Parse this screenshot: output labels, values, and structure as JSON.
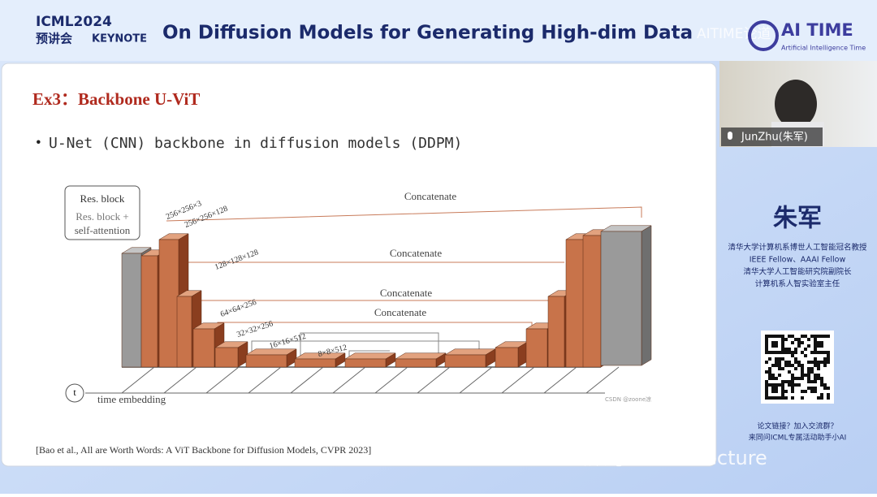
{
  "header": {
    "event": "ICML2024",
    "event_sub": "预讲会",
    "keynote": "KEYNOTE",
    "title": "On Diffusion Models for Generating High-dim Data",
    "logo": "AI TIME",
    "logo_sub": "Artificial Intelligence Time",
    "watermark": "AITIME论道"
  },
  "slide": {
    "heading": "Ex3：Backbone U-ViT",
    "bullet": "U-Net (CNN) backbone in diffusion models (DDPM)",
    "legend": [
      "Res. block",
      "Res. block +",
      "self-attention"
    ],
    "dims": [
      "256×256×3",
      "256×256×128",
      "128×128×128",
      "64×64×256",
      "32×32×256",
      "16×16×512",
      "8×8×512"
    ],
    "concat": [
      "Concatenate",
      "Concatenate",
      "Concatenate",
      "Concatenate"
    ],
    "t": "t",
    "time_embedding": "time embedding",
    "credit": "CSDN @zoone凉",
    "citation": "[Bao et al., All are Worth Words: A ViT Backbone for Diffusion Models, CVPR 2023]"
  },
  "video": {
    "speaker": "JunZhu(朱军)"
  },
  "sidebar": {
    "name": "朱军",
    "bio": [
      "清华大学计算机系博世人工智能冠名教授",
      "IEEE Fellow、AAAI Fellow",
      "清华大学人工智能研究院副院长",
      "计算机系人智实验室主任"
    ],
    "cta": [
      "论文链接？加入交流群？",
      "来同问ICML专属活动助手小AI"
    ]
  },
  "footer": {
    "wechat": "公众号 · ReadLecture"
  }
}
